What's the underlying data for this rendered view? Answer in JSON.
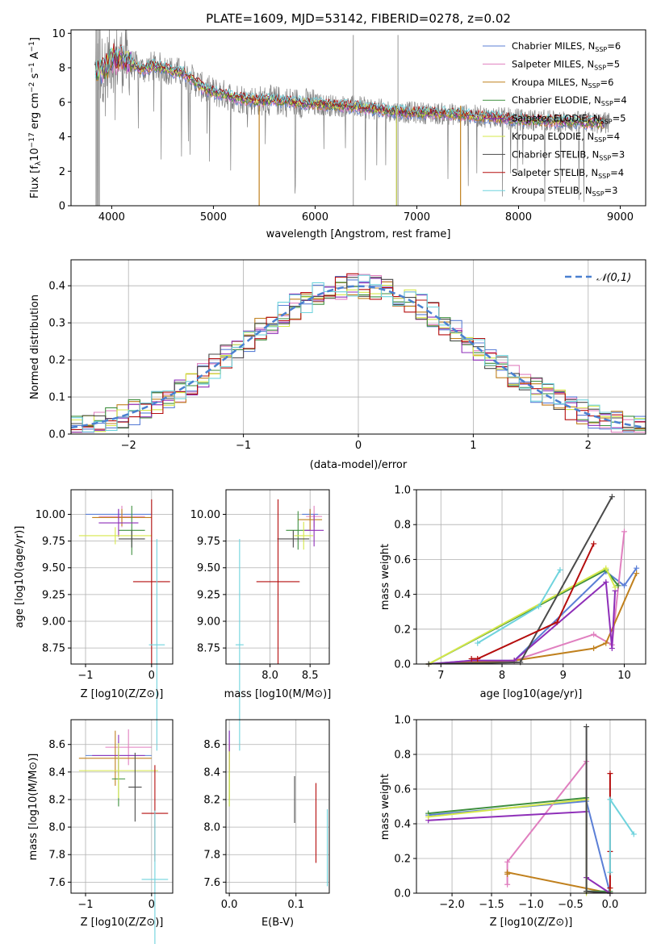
{
  "figure": {
    "title": "PLATE=1609, MJD=53142, FIBERID=0278, z=0.02"
  },
  "models": [
    {
      "name": "Chabrier MILES",
      "nssp": "6",
      "color": "#5b7fd6"
    },
    {
      "name": "Salpeter MILES",
      "nssp": "5",
      "color": "#e07fbf"
    },
    {
      "name": "Kroupa MILES",
      "nssp": "6",
      "color": "#c0801d"
    },
    {
      "name": "Chabrier ELODIE",
      "nssp": "4",
      "color": "#3f8f3f"
    },
    {
      "name": "Salpeter ELODIE",
      "nssp": "5",
      "color": "#8e2eb8"
    },
    {
      "name": "Kroupa ELODIE",
      "nssp": "4",
      "color": "#d6e84a"
    },
    {
      "name": "Chabrier STELIB",
      "nssp": "3",
      "color": "#4a4a4a"
    },
    {
      "name": "Salpeter STELIB",
      "nssp": "4",
      "color": "#b50d0d"
    },
    {
      "name": "Kroupa STELIB",
      "nssp": "3",
      "color": "#6fd3dd"
    }
  ],
  "chart_data": [
    {
      "id": "spectrum",
      "type": "line",
      "title": "PLATE=1609, MJD=53142, FIBERID=0278, z=0.02",
      "xlabel": "wavelength [Angstrom, rest frame]",
      "ylabel_parts": [
        "Flux [f",
        "λ",
        "10",
        "−17",
        " erg cm",
        "−2",
        " s",
        "−1",
        " A",
        "−1",
        "]"
      ],
      "xlim": [
        3600,
        9250
      ],
      "ylim": [
        0,
        10.2
      ],
      "xticks": [
        4000,
        5000,
        6000,
        7000,
        8000,
        9000
      ],
      "yticks": [
        0,
        2,
        4,
        6,
        8,
        10
      ],
      "data_color": "#808080",
      "continuum": {
        "x": [
          3830,
          3900,
          3950,
          4000,
          4100,
          4200,
          4300,
          4400,
          4500,
          4600,
          4700,
          4800,
          4900,
          5000,
          5200,
          5400,
          5600,
          5800,
          6000,
          6200,
          6400,
          6600,
          6800,
          7000,
          7200,
          7400,
          7600,
          7800,
          8000,
          8200,
          8400,
          8600,
          8800
        ],
        "y": [
          7.6,
          7.9,
          8.1,
          8.5,
          8.5,
          8.2,
          7.9,
          8.1,
          8.0,
          7.8,
          7.7,
          7.3,
          6.8,
          6.6,
          6.3,
          6.1,
          6.1,
          6.0,
          5.9,
          5.8,
          5.75,
          5.6,
          5.45,
          5.4,
          5.35,
          5.3,
          5.2,
          5.1,
          5.0,
          4.95,
          4.9,
          4.85,
          4.8
        ]
      }
    },
    {
      "id": "residuals",
      "type": "bar",
      "xlabel": "(data-model)/error",
      "ylabel": "Normed distribution",
      "xlim": [
        -2.5,
        2.5
      ],
      "ylim": [
        0,
        0.47
      ],
      "xticks": [
        -2,
        -1,
        0,
        1,
        2
      ],
      "yticks": [
        0.0,
        0.1,
        0.2,
        0.3,
        0.4
      ],
      "bin_width": 0.1,
      "legend_label": "𝒩(0,1)",
      "legend_color": "#4a80d0"
    },
    {
      "id": "age-vs-Z",
      "type": "scatter",
      "xlabel": "Z [log10(Z/Z⊙)]",
      "ylabel": "age [log10(age/yr)]",
      "xlim": [
        -1.22,
        0.32
      ],
      "ylim": [
        8.6,
        10.23
      ],
      "xticks": [
        -1,
        0
      ],
      "yticks": [
        8.75,
        9.0,
        9.25,
        9.5,
        9.75,
        10.0
      ],
      "points": [
        {
          "x": -0.5,
          "xerr": 0.5,
          "y": 10.0,
          "yerr": 0.05
        },
        {
          "x": -0.45,
          "xerr": 0.35,
          "y": 9.98,
          "yerr": 0.1
        },
        {
          "x": -0.45,
          "xerr": 0.45,
          "y": 9.97,
          "yerr": 0.08
        },
        {
          "x": -0.3,
          "xerr": 0.2,
          "y": 9.85,
          "yerr": 0.23
        },
        {
          "x": -0.5,
          "xerr": 0.3,
          "y": 9.92,
          "yerr": 0.13
        },
        {
          "x": -0.55,
          "xerr": 0.55,
          "y": 9.8,
          "yerr": 0.08
        },
        {
          "x": -0.3,
          "xerr": 0.2,
          "y": 9.77,
          "yerr": 0.08
        },
        {
          "x": 0.0,
          "xerr": 0.28,
          "y": 9.37,
          "yerr": 0.77
        },
        {
          "x": 0.08,
          "xerr": 0.12,
          "y": 8.78,
          "yerr": 0.99
        }
      ]
    },
    {
      "id": "age-vs-mass",
      "type": "scatter",
      "xlabel": "mass [log10(M/M⊙)]",
      "ylabel": "",
      "xlim": [
        7.45,
        8.74
      ],
      "ylim": [
        8.6,
        10.23
      ],
      "xticks": [
        8.0,
        8.5
      ],
      "yticks": [
        8.75,
        9.0,
        9.25,
        9.5,
        9.75,
        10.0
      ],
      "points": [
        {
          "x": 8.5,
          "xerr": 0.1,
          "y": 10.0,
          "yerr": 0.05
        },
        {
          "x": 8.55,
          "xerr": 0.1,
          "y": 9.98,
          "yerr": 0.1
        },
        {
          "x": 8.5,
          "xerr": 0.15,
          "y": 9.95,
          "yerr": 0.1
        },
        {
          "x": 8.35,
          "xerr": 0.15,
          "y": 9.85,
          "yerr": 0.18
        },
        {
          "x": 8.55,
          "xerr": 0.12,
          "y": 9.85,
          "yerr": 0.15
        },
        {
          "x": 8.42,
          "xerr": 0.12,
          "y": 9.8,
          "yerr": 0.13
        },
        {
          "x": 8.29,
          "xerr": 0.2,
          "y": 9.77,
          "yerr": 0.08
        },
        {
          "x": 8.1,
          "xerr": 0.27,
          "y": 9.37,
          "yerr": 0.77
        },
        {
          "x": 7.62,
          "xerr": 0.05,
          "y": 8.78,
          "yerr": 0.99
        }
      ]
    },
    {
      "id": "weight-vs-age",
      "type": "line",
      "xlabel": "age [log10(age/yr)]",
      "ylabel": "mass weight",
      "xlim": [
        6.6,
        10.35
      ],
      "ylim": [
        0,
        1.0
      ],
      "xticks": [
        7,
        8,
        9,
        10
      ],
      "yticks": [
        0.0,
        0.2,
        0.4,
        0.6,
        0.8,
        1.0
      ],
      "series": [
        {
          "x": [
            6.8,
            7.5,
            8.2,
            9.7,
            10.0,
            10.2
          ],
          "y": [
            0.0,
            0.02,
            0.02,
            0.53,
            0.45,
            0.55
          ]
        },
        {
          "x": [
            6.8,
            8.2,
            9.5,
            9.8,
            10.0
          ],
          "y": [
            0.0,
            0.02,
            0.17,
            0.11,
            0.76
          ]
        },
        {
          "x": [
            6.8,
            8.2,
            9.5,
            9.7,
            10.2
          ],
          "y": [
            0.0,
            0.02,
            0.09,
            0.12,
            0.52
          ]
        },
        {
          "x": [
            6.8,
            9.7,
            9.9
          ],
          "y": [
            0.0,
            0.54,
            0.45
          ]
        },
        {
          "x": [
            6.8,
            7.5,
            8.2,
            9.7,
            9.8,
            9.85
          ],
          "y": [
            0.0,
            0.02,
            0.02,
            0.47,
            0.09,
            0.42
          ]
        },
        {
          "x": [
            6.8,
            9.7,
            9.85
          ],
          "y": [
            0.0,
            0.55,
            0.44
          ]
        },
        {
          "x": [
            6.8,
            8.3,
            9.8
          ],
          "y": [
            0.0,
            0.01,
            0.96
          ]
        },
        {
          "x": [
            7.5,
            7.6,
            8.9,
            9.5
          ],
          "y": [
            0.03,
            0.03,
            0.24,
            0.69
          ]
        },
        {
          "x": [
            7.6,
            8.6,
            8.95
          ],
          "y": [
            0.12,
            0.33,
            0.54
          ]
        }
      ]
    },
    {
      "id": "mass-vs-Z",
      "type": "scatter",
      "xlabel": "Z [log10(Z/Z⊙)]",
      "ylabel": "mass [log10(M/M⊙)]",
      "xlim": [
        -1.22,
        0.32
      ],
      "ylim": [
        7.52,
        8.78
      ],
      "xticks": [
        -1,
        0
      ],
      "yticks": [
        7.6,
        7.8,
        8.0,
        8.2,
        8.4,
        8.6
      ],
      "points": [
        {
          "x": -0.5,
          "xerr": 0.5,
          "y": 8.52,
          "yerr": 0.1
        },
        {
          "x": -0.35,
          "xerr": 0.35,
          "y": 8.58,
          "yerr": 0.13
        },
        {
          "x": -0.55,
          "xerr": 0.55,
          "y": 8.5,
          "yerr": 0.2
        },
        {
          "x": -0.5,
          "xerr": 0.1,
          "y": 8.35,
          "yerr": 0.2
        },
        {
          "x": -0.5,
          "xerr": 0.4,
          "y": 8.52,
          "yerr": 0.15
        },
        {
          "x": -0.5,
          "xerr": 0.6,
          "y": 8.41,
          "yerr": 0.2
        },
        {
          "x": -0.25,
          "xerr": 0.1,
          "y": 8.29,
          "yerr": 0.25
        },
        {
          "x": 0.05,
          "xerr": 0.2,
          "y": 8.1,
          "yerr": 0.35
        },
        {
          "x": 0.05,
          "xerr": 0.2,
          "y": 7.62,
          "yerr": 0.5
        }
      ]
    },
    {
      "id": "mass-vs-ebv",
      "type": "scatter",
      "xlabel": "E(B-V)",
      "ylabel": "",
      "xlim": [
        -0.005,
        0.15
      ],
      "ylim": [
        7.52,
        8.78
      ],
      "xticks": [
        0.0,
        0.1
      ],
      "yticks": [
        7.6,
        7.8,
        8.0,
        8.2,
        8.4,
        8.6
      ],
      "points": [
        {
          "x": 0.0,
          "xerr": 0.0,
          "y": 8.6,
          "yerr": 0.1
        },
        {
          "x": 0.0,
          "xerr": 0.0,
          "y": 8.52,
          "yerr": 0.1
        },
        {
          "x": 0.0,
          "xerr": 0.0,
          "y": 8.4,
          "yerr": 0.2
        },
        {
          "x": 0.0,
          "xerr": 0.0,
          "y": 8.35,
          "yerr": 0.2
        },
        {
          "x": 0.0,
          "xerr": 0.0,
          "y": 8.55,
          "yerr": 0.15
        },
        {
          "x": 0.0,
          "xerr": 0.0,
          "y": 8.35,
          "yerr": 0.2
        },
        {
          "x": 0.098,
          "xerr": 0.0,
          "y": 8.2,
          "yerr": 0.17
        },
        {
          "x": 0.13,
          "xerr": 0.0,
          "y": 8.03,
          "yerr": 0.29
        },
        {
          "x": 0.147,
          "xerr": 0.0,
          "y": 7.85,
          "yerr": 0.28
        }
      ]
    },
    {
      "id": "weight-vs-Z",
      "type": "line",
      "xlabel": "Z [log10(Z/Z⊙)]",
      "ylabel": "mass weight",
      "xlim": [
        -2.45,
        0.45
      ],
      "ylim": [
        0,
        1.0
      ],
      "xticks": [
        -2.0,
        -1.5,
        -1.0,
        -0.5,
        0.0
      ],
      "yticks": [
        0.0,
        0.2,
        0.4,
        0.6,
        0.8,
        1.0
      ],
      "series": [
        {
          "x": [
            -2.3,
            -0.3,
            0.0
          ],
          "y": [
            0.45,
            0.53,
            0.0
          ]
        },
        {
          "x": [
            -1.3,
            -1.3,
            -0.3,
            -0.3
          ],
          "y": [
            0.05,
            0.18,
            0.76,
            0.01
          ]
        },
        {
          "x": [
            -1.3,
            -1.3,
            0.0,
            0.0
          ],
          "y": [
            0.11,
            0.12,
            0.0,
            0.03
          ]
        },
        {
          "x": [
            -2.3,
            -0.3,
            -0.3,
            0.0
          ],
          "y": [
            0.46,
            0.55,
            0.01,
            0.01
          ]
        },
        {
          "x": [
            -2.3,
            -0.3,
            -0.3,
            0.0
          ],
          "y": [
            0.42,
            0.47,
            0.09,
            0.0
          ]
        },
        {
          "x": [
            -2.3,
            -0.3,
            -0.3
          ],
          "y": [
            0.44,
            0.54,
            0.0
          ]
        },
        {
          "x": [
            -0.3,
            -0.3,
            0.0
          ],
          "y": [
            0.96,
            0.01,
            0.0
          ]
        },
        {
          "x": [
            0.0,
            0.0,
            0.0
          ],
          "y": [
            0.69,
            0.24,
            0.03
          ]
        },
        {
          "x": [
            0.0,
            0.0,
            0.3
          ],
          "y": [
            0.12,
            0.54,
            0.34
          ]
        }
      ]
    }
  ]
}
